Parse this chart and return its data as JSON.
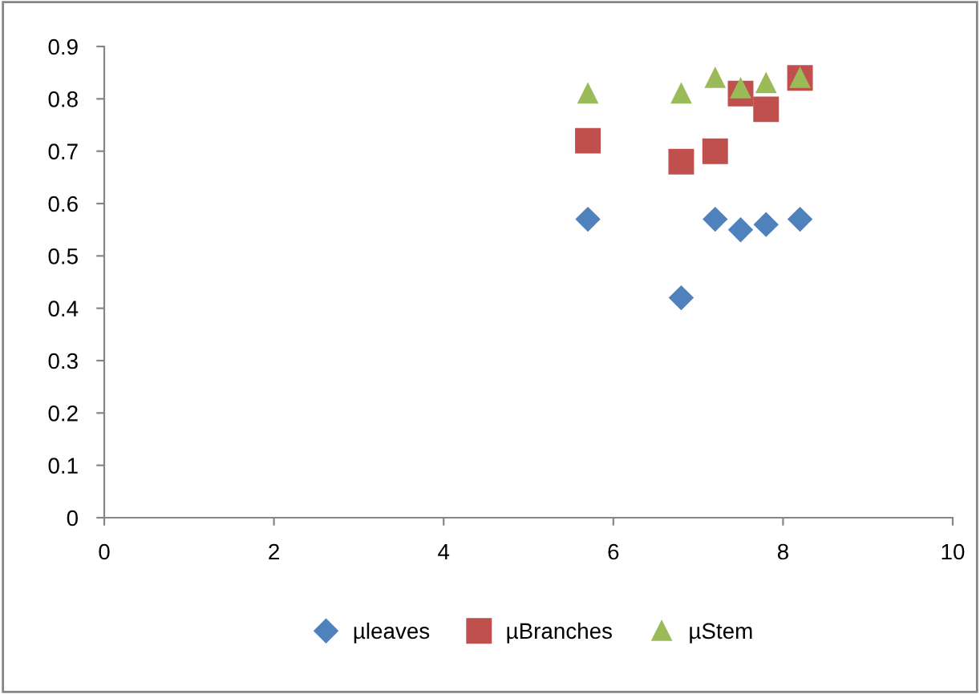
{
  "chart_data": {
    "type": "scatter",
    "xlim": [
      0,
      10
    ],
    "ylim": [
      0,
      0.9
    ],
    "xticks": [
      0,
      2,
      4,
      6,
      8,
      10
    ],
    "yticks": [
      0,
      0.1,
      0.2,
      0.3,
      0.4,
      0.5,
      0.6,
      0.7,
      0.8,
      0.9
    ],
    "grid": false,
    "legend": "bottom",
    "series": [
      {
        "name": "µleaves",
        "color": "#4f81bd",
        "marker": "diamond",
        "x": [
          5.7,
          6.8,
          7.2,
          7.5,
          7.8,
          8.2
        ],
        "values": [
          0.57,
          0.42,
          0.57,
          0.55,
          0.56,
          0.57
        ]
      },
      {
        "name": "µBranches",
        "color": "#c0504d",
        "marker": "square",
        "x": [
          5.7,
          6.8,
          7.2,
          7.5,
          7.8,
          8.2
        ],
        "values": [
          0.72,
          0.68,
          0.7,
          0.81,
          0.78,
          0.84
        ]
      },
      {
        "name": "µStem",
        "color": "#9bbb59",
        "marker": "triangle",
        "x": [
          5.7,
          6.8,
          7.2,
          7.5,
          7.8,
          8.2
        ],
        "values": [
          0.81,
          0.81,
          0.84,
          0.82,
          0.83,
          0.84
        ]
      }
    ]
  }
}
